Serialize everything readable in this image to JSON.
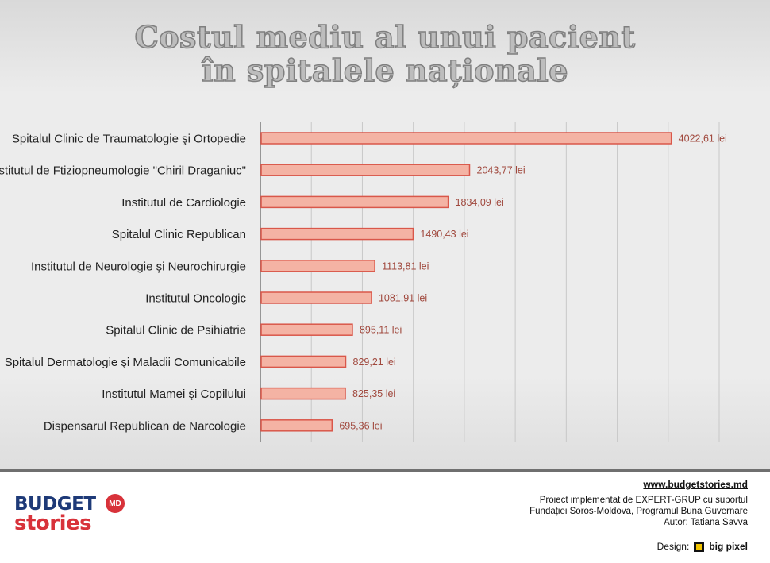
{
  "title_line_1": "Costul mediu al unui pacient",
  "title_line_2": "în spitalele naționale",
  "chart_data": {
    "type": "bar",
    "orientation": "horizontal",
    "title": "Costul mediu al unui pacient în spitalele naționale",
    "categories": [
      "Spitalul Clinic de Traumatologie şi Ortopedie",
      "Institutul de Ftiziopneumologie \"Chiril Draganiuc\"",
      "Institutul de Cardiologie",
      "Spitalul Clinic Republican",
      "Institutul de Neurologie şi Neurochirurgie",
      "Institutul Oncologic",
      "Spitalul Clinic de Psihiatrie",
      "Spitalul Dermatologie şi Maladii Comunicabile",
      "Institutul Mamei şi Copilului",
      "Dispensarul Republican de Narcologie"
    ],
    "values": [
      4022.61,
      2043.77,
      1834.09,
      1490.43,
      1113.81,
      1081.91,
      895.11,
      829.21,
      825.35,
      695.36
    ],
    "value_labels": [
      "4022,61 lei",
      "2043,77 lei",
      "1834,09 lei",
      "1490,43 lei",
      "1113,81 lei",
      "1081,91 lei",
      "895,11 lei",
      "829,21 lei",
      "825,35 lei",
      "695,36 lei"
    ],
    "xlim": [
      0,
      4500
    ],
    "grid": true,
    "bar_fill": "#f4b3a4",
    "bar_stroke": "#d9574a",
    "grid_color": "#c8c8c8"
  },
  "footer": {
    "url": "www.budgetstories.md",
    "credit_1": "Proiect implementat de EXPERT-GRUP cu suportul",
    "credit_2": "Fundației Soros-Moldova, Programul Buna Guvernare",
    "credit_3": "Autor: Tatiana Savva",
    "design_label": "Design:",
    "designer": "big pixel"
  },
  "logo": {
    "word_1": "BUDGET",
    "word_2": "stories",
    "badge": "MD",
    "brand_blue": "#1e3a78",
    "brand_red": "#d8323a"
  }
}
